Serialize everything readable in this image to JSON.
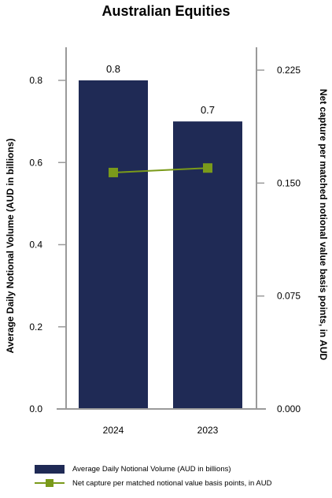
{
  "chart_data": {
    "type": "bar",
    "title": "Australian Equities",
    "categories": [
      "2024",
      "2023"
    ],
    "series": [
      {
        "name": "Average Daily Notional Volume (AUD in billions)",
        "type": "bar",
        "axis": "left",
        "values": [
          0.8,
          0.7
        ],
        "data_labels": [
          "0.8",
          "0.7"
        ],
        "color": "#1f2a55"
      },
      {
        "name": "Net capture per matched notional value basis points, in AUD",
        "type": "line",
        "axis": "right",
        "values": [
          0.157,
          0.16
        ],
        "color": "#7a9a1a"
      }
    ],
    "ylabel": "Average Daily Notional Volume (AUD in billions)",
    "y2label": "Net capture per matched notional value basis points, in AUD",
    "ylim": [
      0,
      0.8
    ],
    "y2lim": [
      0,
      0.225
    ],
    "yticks": [
      "0.0",
      "0.2",
      "0.4",
      "0.6",
      "0.8"
    ],
    "y2ticks": [
      "0.000",
      "0.075",
      "0.150",
      "0.225"
    ],
    "legend_position": "bottom",
    "grid": false
  }
}
